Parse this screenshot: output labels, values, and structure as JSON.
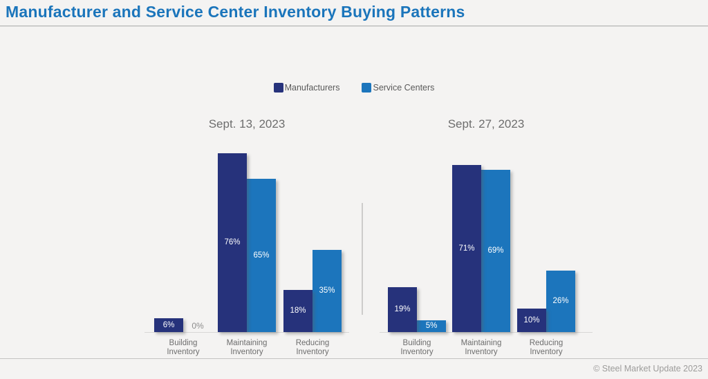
{
  "page": {
    "title": "Manufacturer and Service Center Inventory Buying Patterns",
    "copyright": "© Steel Market Update 2023"
  },
  "colors": {
    "manufacturers": "#26327b",
    "service_centers": "#1c75bc",
    "title_blue": "#1b75bb"
  },
  "legend": {
    "items": [
      {
        "label": "Manufacturers",
        "color": "#26327b"
      },
      {
        "label": "Service Centers",
        "color": "#1c75bc"
      }
    ]
  },
  "chart_data": [
    {
      "type": "bar",
      "title": "Sept. 13, 2023",
      "categories": [
        "Building\nInventory",
        "Maintaining\nInventory",
        "Reducing\nInventory"
      ],
      "series": [
        {
          "name": "Manufacturers",
          "color": "#26327b",
          "values": [
            6,
            76,
            18
          ]
        },
        {
          "name": "Service Centers",
          "color": "#1c75bc",
          "values": [
            0,
            65,
            35
          ]
        }
      ],
      "value_suffix": "%",
      "data_labels": "inside-center",
      "ylim": [
        0,
        80
      ],
      "grid": false,
      "legend_position": "top-center"
    },
    {
      "type": "bar",
      "title": "Sept. 27, 2023",
      "categories": [
        "Building\nInventory",
        "Maintaining\nInventory",
        "Reducing\nInventory"
      ],
      "series": [
        {
          "name": "Manufacturers",
          "color": "#26327b",
          "values": [
            19,
            71,
            10
          ]
        },
        {
          "name": "Service Centers",
          "color": "#1c75bc",
          "values": [
            5,
            69,
            26
          ]
        }
      ],
      "value_suffix": "%",
      "data_labels": "inside-center",
      "ylim": [
        0,
        80
      ],
      "grid": false,
      "legend_position": "top-center"
    }
  ]
}
